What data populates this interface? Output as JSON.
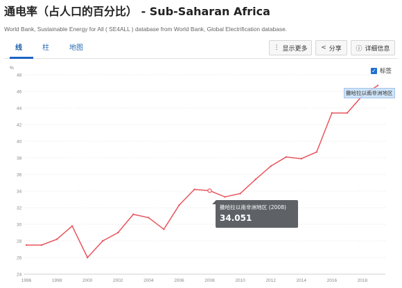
{
  "header": {
    "title": "通电率（占人口的百分比） - Sub-Saharan Africa",
    "subtitle": "World Bank, Sustainable Energy for All ( SE4ALL ) database from World Bank, Global Electrification database."
  },
  "tabs": [
    {
      "label": "线",
      "active": true
    },
    {
      "label": "柱",
      "active": false
    },
    {
      "label": "地图",
      "active": false
    }
  ],
  "toolbar": {
    "more_label": "显示更多",
    "share_label": "分享",
    "details_label": "详细信息"
  },
  "legend": {
    "label": "标签",
    "checked": true
  },
  "series_end_label": "撒哈拉以南非洲地区",
  "tooltip": {
    "series": "撒哈拉以南非洲地区 (2008)",
    "value": "34.051"
  },
  "colors": {
    "line": "#e8545c",
    "accent": "#1b63c6"
  },
  "chart_data": {
    "type": "line",
    "ylabel": "%",
    "ylim": [
      24,
      48
    ],
    "yticks": [
      "24",
      "26",
      "28",
      "30",
      "32",
      "34",
      "36",
      "38",
      "40",
      "42",
      "44",
      "46",
      "48"
    ],
    "xticks": [
      "1996",
      "1998",
      "2000",
      "2002",
      "2004",
      "2006",
      "2008",
      "2010",
      "2012",
      "2014",
      "2016",
      "2018"
    ],
    "xlim": [
      1996,
      2019.5
    ],
    "grid": true,
    "series": [
      {
        "name": "撒哈拉以南非洲地区",
        "x": [
          1996,
          1997,
          1998,
          1999,
          2000,
          2001,
          2002,
          2003,
          2004,
          2005,
          2006,
          2007,
          2008,
          2009,
          2010,
          2011,
          2012,
          2013,
          2014,
          2015,
          2016,
          2017,
          2018,
          2019
        ],
        "values": [
          27.5,
          27.5,
          28.2,
          29.8,
          26.0,
          28.0,
          29.0,
          31.2,
          30.8,
          29.4,
          32.3,
          34.2,
          34.051,
          33.3,
          33.7,
          35.4,
          37.0,
          38.1,
          37.9,
          38.7,
          43.4,
          43.4,
          45.5,
          46.7
        ]
      }
    ]
  }
}
